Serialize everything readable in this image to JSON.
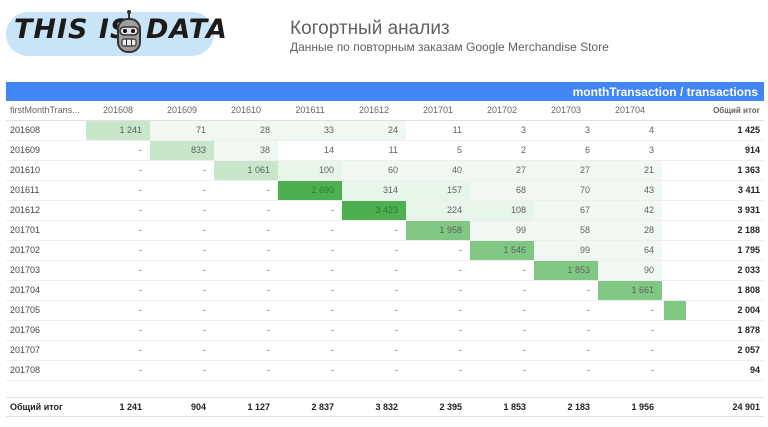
{
  "logo": {
    "word1": "THIS IS",
    "word2": "DATA"
  },
  "header": {
    "title": "Когортный анализ",
    "subtitle": "Данные по повторным заказам Google Merchandise Store"
  },
  "table": {
    "pivot_label": "monthTransaction / transactions",
    "row_header": "firstMonthTrans...",
    "total_label": "Общий итог",
    "months": [
      "201608",
      "201609",
      "201610",
      "201611",
      "201612",
      "201701",
      "201702",
      "201703",
      "201704"
    ],
    "rows": [
      {
        "label": "201608",
        "cells": [
          "1 241",
          "71",
          "28",
          "33",
          "24",
          "11",
          "3",
          "3",
          "4"
        ],
        "spark": "",
        "total": "1 425"
      },
      {
        "label": "201609",
        "cells": [
          "-",
          "833",
          "38",
          "14",
          "11",
          "5",
          "2",
          "6",
          "3"
        ],
        "spark": "",
        "total": "914"
      },
      {
        "label": "201610",
        "cells": [
          "-",
          "-",
          "1 061",
          "100",
          "60",
          "40",
          "27",
          "27",
          "21"
        ],
        "spark": "",
        "total": "1 363"
      },
      {
        "label": "201611",
        "cells": [
          "-",
          "-",
          "-",
          "2 690",
          "314",
          "157",
          "68",
          "70",
          "43"
        ],
        "spark": "",
        "total": "3 411"
      },
      {
        "label": "201612",
        "cells": [
          "-",
          "-",
          "-",
          "-",
          "3 423",
          "224",
          "108",
          "67",
          "42"
        ],
        "spark": "",
        "total": "3 931"
      },
      {
        "label": "201701",
        "cells": [
          "-",
          "-",
          "-",
          "-",
          "-",
          "1 958",
          "99",
          "58",
          "28"
        ],
        "spark": "",
        "total": "2 188"
      },
      {
        "label": "201702",
        "cells": [
          "-",
          "-",
          "-",
          "-",
          "-",
          "-",
          "1 546",
          "99",
          "64"
        ],
        "spark": "",
        "total": "1 795"
      },
      {
        "label": "201703",
        "cells": [
          "-",
          "-",
          "-",
          "-",
          "-",
          "-",
          "-",
          "1 853",
          "90"
        ],
        "spark": "",
        "total": "2 033"
      },
      {
        "label": "201704",
        "cells": [
          "-",
          "-",
          "-",
          "-",
          "-",
          "-",
          "-",
          "-",
          "1 661"
        ],
        "spark": "",
        "total": "1 808"
      },
      {
        "label": "201705",
        "cells": [
          "-",
          "-",
          "-",
          "-",
          "-",
          "-",
          "-",
          "-",
          "-"
        ],
        "spark": "#81c784",
        "total": "2 004"
      },
      {
        "label": "201706",
        "cells": [
          "-",
          "-",
          "-",
          "-",
          "-",
          "-",
          "-",
          "-",
          "-"
        ],
        "spark": "",
        "total": "1 878"
      },
      {
        "label": "201707",
        "cells": [
          "-",
          "-",
          "-",
          "-",
          "-",
          "-",
          "-",
          "-",
          "-"
        ],
        "spark": "",
        "total": "2 057"
      },
      {
        "label": "201708",
        "cells": [
          "-",
          "-",
          "-",
          "-",
          "-",
          "-",
          "-",
          "-",
          "-"
        ],
        "spark": "",
        "total": "94"
      }
    ],
    "footer": {
      "label": "Общий итог",
      "cells": [
        "1 241",
        "904",
        "1 127",
        "2 837",
        "3 832",
        "2 395",
        "1 853",
        "2 183",
        "1 956"
      ],
      "total": "24 901"
    },
    "heat_colors": {
      "high": "#4caf50",
      "mid": "#81c784",
      "low": "#c8e6c9",
      "faint": "#e8f5e9",
      "faintest": "#f1f8f1"
    }
  }
}
